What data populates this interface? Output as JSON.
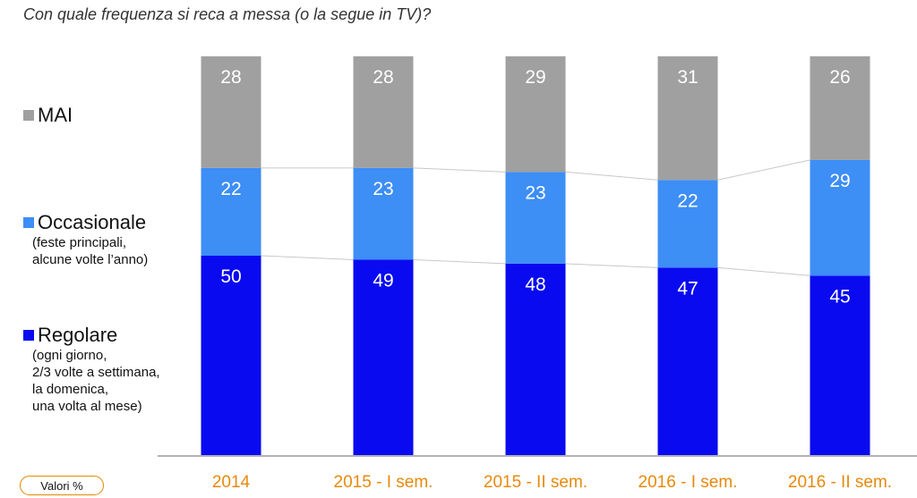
{
  "title": "Con quale frequenza si reca a messa (o la segue in TV)?",
  "units_label": "Valori %",
  "legend": {
    "mai": {
      "label": "MAI",
      "note": ""
    },
    "occasionale": {
      "label": "Occasionale",
      "note": "(feste principali,\nalcune volte l’anno)"
    },
    "regolare": {
      "label": "Regolare",
      "note": "(ogni giorno,\n2/3 volte a settimana,\nla domenica,\nuna volta al mese)"
    }
  },
  "colors": {
    "mai": "#a0a0a0",
    "occasionale": "#3d8ef5",
    "regolare": "#0a0af0",
    "tick": "#e8890c"
  },
  "chart_data": {
    "type": "bar",
    "stacked": true,
    "categories": [
      "2014",
      "2015 - I sem.",
      "2015 - II sem.",
      "2016 - I sem.",
      "2016 - II sem."
    ],
    "series": [
      {
        "name": "Regolare",
        "values": [
          50,
          49,
          48,
          47,
          45
        ]
      },
      {
        "name": "Occasionale",
        "values": [
          22,
          23,
          23,
          22,
          29
        ]
      },
      {
        "name": "MAI",
        "values": [
          28,
          28,
          29,
          31,
          26
        ]
      }
    ],
    "ylim": [
      0,
      100
    ],
    "grid": false,
    "legend_position": "left"
  }
}
